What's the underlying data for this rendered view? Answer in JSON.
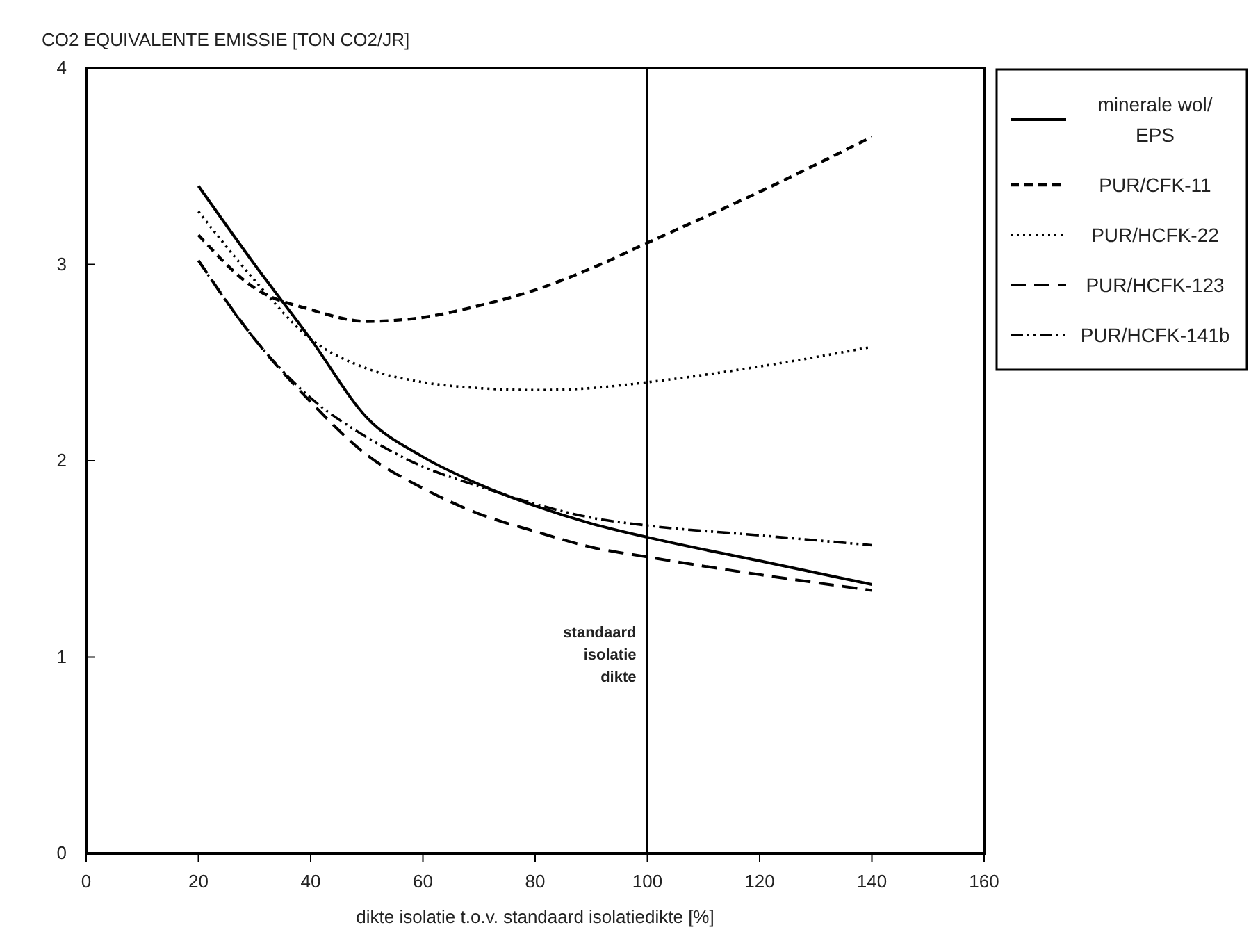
{
  "chart_data": {
    "type": "line",
    "ylabel": "CO2 EQUIVALENTE EMISSIE [TON CO2/JR]",
    "xlabel": "dikte isolatie t.o.v. standaard isolatiedikte [%]",
    "x": [
      20,
      30,
      40,
      50,
      60,
      70,
      80,
      90,
      100,
      120,
      140
    ],
    "xlim": [
      0,
      160
    ],
    "xticks": [
      0,
      20,
      40,
      60,
      80,
      100,
      120,
      140,
      160
    ],
    "ylim": [
      0,
      4
    ],
    "yticks": [
      0,
      1,
      2,
      3,
      4
    ],
    "grid": false,
    "legend": "right",
    "marker": "none",
    "series": [
      {
        "name": "minerale wol/ EPS",
        "color": "#000000",
        "line_style": "solid",
        "values": [
          3.4,
          3.0,
          2.62,
          2.22,
          2.02,
          1.88,
          1.77,
          1.68,
          1.61,
          1.49,
          1.37
        ]
      },
      {
        "name": "PUR/CFK-11",
        "color": "#000000",
        "line_style": "dashed",
        "values": [
          3.15,
          2.88,
          2.77,
          2.71,
          2.73,
          2.79,
          2.87,
          2.98,
          3.11,
          3.37,
          3.65
        ]
      },
      {
        "name": "PUR/HCFK-22",
        "color": "#000000",
        "line_style": "dotted",
        "values": [
          3.27,
          2.92,
          2.62,
          2.47,
          2.4,
          2.37,
          2.36,
          2.37,
          2.4,
          2.48,
          2.58
        ]
      },
      {
        "name": "PUR/HCFK-123",
        "color": "#000000",
        "line_style": "longdash",
        "values": [
          3.02,
          2.62,
          2.3,
          2.03,
          1.86,
          1.73,
          1.64,
          1.56,
          1.51,
          1.42,
          1.34
        ]
      },
      {
        "name": "PUR/HCFK-141b",
        "color": "#000000",
        "line_style": "dashdotdot",
        "values": [
          3.02,
          2.62,
          2.32,
          2.12,
          1.97,
          1.87,
          1.78,
          1.71,
          1.67,
          1.62,
          1.57
        ]
      }
    ],
    "ref_lines": [
      {
        "axis": "x",
        "value": 100,
        "color": "#000000"
      }
    ],
    "annotations": [
      {
        "text": "standaard isolatie dikte",
        "x": 100,
        "y": 1.1
      }
    ]
  }
}
